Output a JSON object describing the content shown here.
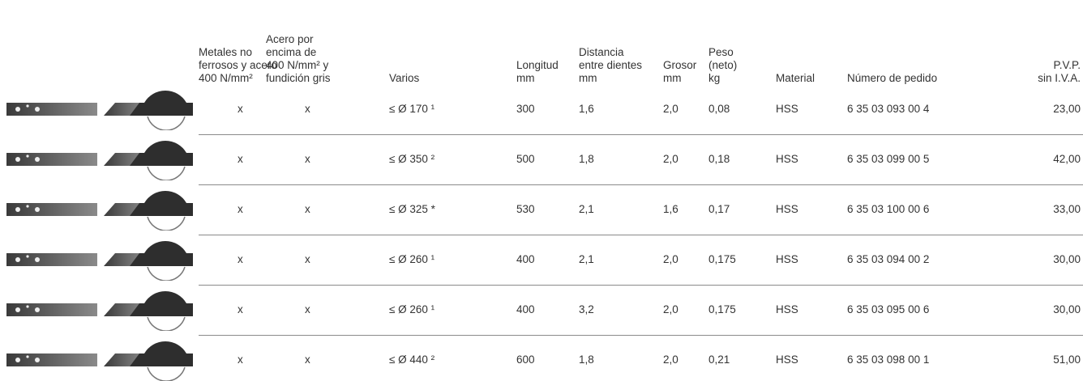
{
  "table": {
    "columns": [
      "Metales no\nferrosos y acero\n400 N/mm²",
      "Acero por\nencima de\n400 N/mm² y\nfundición gris",
      "Varios",
      "Longitud\nmm",
      "Distancia\nentre dientes\nmm",
      "Grosor\nmm",
      "Peso\n(neto)\nkg",
      "Material",
      "Número de pedido",
      "P.V.P.\nsin I.V.A."
    ],
    "rows": [
      [
        "x",
        "x",
        "≤ Ø 170 ¹",
        "300",
        "1,6",
        "2,0",
        "0,08",
        "HSS",
        "6 35 03 093 00 4",
        "23,00"
      ],
      [
        "x",
        "x",
        "≤ Ø 350 ²",
        "500",
        "1,8",
        "2,0",
        "0,18",
        "HSS",
        "6 35 03 099 00 5",
        "42,00"
      ],
      [
        "x",
        "x",
        "≤ Ø 325 *",
        "530",
        "2,1",
        "1,6",
        "0,17",
        "HSS",
        "6 35 03 100 00 6",
        "33,00"
      ],
      [
        "x",
        "x",
        "≤ Ø 260 ¹",
        "400",
        "2,1",
        "2,0",
        "0,175",
        "HSS",
        "6 35 03 094 00 2",
        "30,00"
      ],
      [
        "x",
        "x",
        "≤ Ø 260 ¹",
        "400",
        "3,2",
        "2,0",
        "0,175",
        "HSS",
        "6 35 03 095 00 6",
        "30,00"
      ],
      [
        "x",
        "x",
        "≤ Ø 440 ²",
        "600",
        "1,8",
        "2,0",
        "0,21",
        "HSS",
        "6 35 03 098 00 1",
        "51,00"
      ]
    ]
  }
}
